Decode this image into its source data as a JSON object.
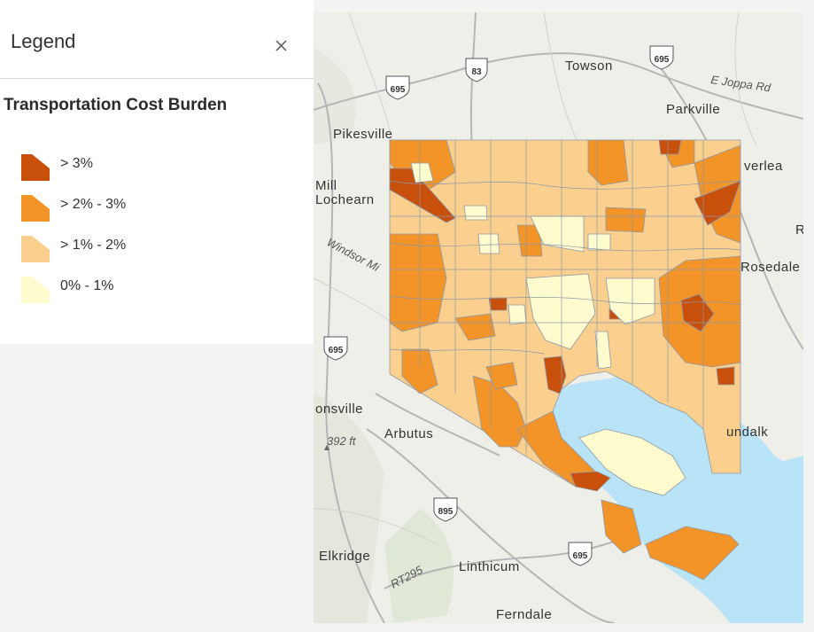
{
  "legend": {
    "title": "Legend",
    "close_label": "×",
    "layer_title": "Transportation Cost Burden",
    "items": [
      {
        "label": "> 3%",
        "color": "#c8500a"
      },
      {
        "label": "> 2% - 3%",
        "color": "#f39428"
      },
      {
        "label": "> 1% - 2%",
        "color": "#fbd08e"
      },
      {
        "label": "0% - 1%",
        "color": "#fefccf"
      }
    ]
  },
  "map": {
    "water_color": "#b9e3f6",
    "places": {
      "towson": "Towson",
      "parkville": "Parkville",
      "pikesville": "Pikesville",
      "mill": "Mill",
      "lochearn": "Lochearn",
      "overlea": "verlea",
      "rosedale": "Rosedale",
      "r_edge": "R",
      "windsor": "Windsor Mi",
      "catonsville": "onsville",
      "arbutus": "Arbutus",
      "dundalk": "undalk",
      "elkridge": "Elkridge",
      "linthicum": "Linthicum",
      "ferndale": "Ferndale",
      "e_joppa": "E Joppa Rd",
      "elevation": "392 ft",
      "rt295": "RT295"
    },
    "shields": {
      "i83": "83",
      "i695": "695",
      "i895": "895"
    }
  }
}
